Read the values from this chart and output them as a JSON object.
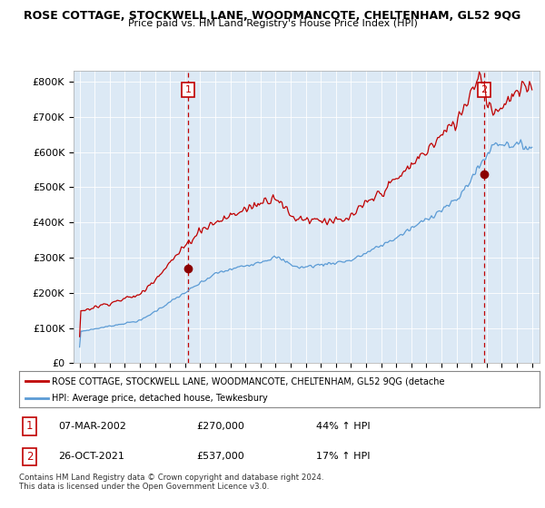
{
  "title": "ROSE COTTAGE, STOCKWELL LANE, WOODMANCOTE, CHELTENHAM, GL52 9QG",
  "subtitle": "Price paid vs. HM Land Registry's House Price Index (HPI)",
  "ylabel_ticks": [
    "£0",
    "£100K",
    "£200K",
    "£300K",
    "£400K",
    "£500K",
    "£600K",
    "£700K",
    "£800K"
  ],
  "ytick_values": [
    0,
    100000,
    200000,
    300000,
    400000,
    500000,
    600000,
    700000,
    800000
  ],
  "ylim": [
    0,
    830000
  ],
  "sale1": {
    "date_num": 2002.18,
    "price": 270000,
    "label": "1"
  },
  "sale2": {
    "date_num": 2021.82,
    "price": 537000,
    "label": "2"
  },
  "legend_line1": "ROSE COTTAGE, STOCKWELL LANE, WOODMANCOTE, CHELTENHAM, GL52 9QG (detache",
  "legend_line2": "HPI: Average price, detached house, Tewkesbury",
  "table_row1": [
    "1",
    "07-MAR-2002",
    "£270,000",
    "44% ↑ HPI"
  ],
  "table_row2": [
    "2",
    "26-OCT-2021",
    "£537,000",
    "17% ↑ HPI"
  ],
  "footnote": "Contains HM Land Registry data © Crown copyright and database right 2024.\nThis data is licensed under the Open Government Licence v3.0.",
  "hpi_color": "#5b9bd5",
  "price_color": "#c00000",
  "dashed_color": "#c00000",
  "bg_plot": "#dce9f5",
  "background_color": "#ffffff",
  "grid_color": "#ffffff"
}
